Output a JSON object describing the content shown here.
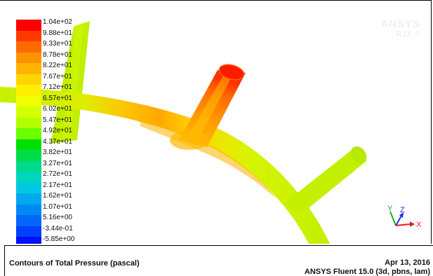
{
  "legend": {
    "colors": [
      "#ff0000",
      "#ff3a00",
      "#ff6a00",
      "#ff9200",
      "#ffb400",
      "#ffd500",
      "#fff000",
      "#f0ff00",
      "#d4ff00",
      "#b2ff00",
      "#6bff00",
      "#00e000",
      "#00dd4a",
      "#00d98a",
      "#00d5bd",
      "#00c8e2",
      "#00a8f0",
      "#0088f5",
      "#0068f8",
      "#0040fc",
      "#0010ff"
    ],
    "labels": [
      "1.04e+02",
      "9.88e+01",
      "9.33e+01",
      "8.78e+01",
      "8.22e+01",
      "7.67e+01",
      "7.12e+01",
      "6.57e+01",
      "6.02e+01",
      "5.47e+01",
      "4.92e+01",
      "4.37e+01",
      "3.82e+01",
      "3.27e+01",
      "2.72e+01",
      "2.17e+01",
      "1.62e+01",
      "1.07e+01",
      "5.16e+00",
      "-3.44e-01",
      "-5.85e+00"
    ]
  },
  "watermark": {
    "line1": "ANSYS",
    "line2": "R15.0"
  },
  "footer": {
    "title": "Contours of Total Pressure (pascal)",
    "date": "Apr 13, 2016",
    "solver": "ANSYS Fluent 15.0 (3d, pbns, lam)"
  },
  "axes": {
    "x_label": "X",
    "y_label": "Y",
    "z_label": "Z",
    "x_color": "#e02020",
    "y_color": "#20b020",
    "z_color": "#2030e0"
  },
  "scene_colors": {
    "pipe_main": "#c2f000",
    "pipe_light": "#d6f800",
    "pipe_warm": "#ffb000",
    "pipe_orange": "#ff8c00",
    "pipe_hot": "#ff6000",
    "pipe_red": "#ff2000",
    "pipe_yellow": "#ffe000"
  }
}
